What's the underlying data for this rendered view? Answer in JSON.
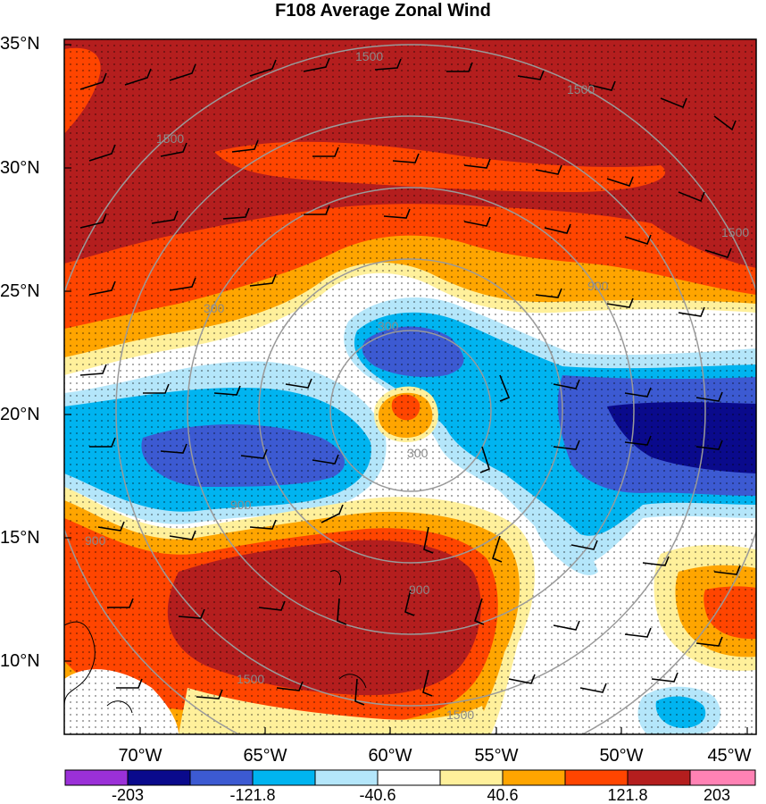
{
  "title": "F108 Average Zonal Wind",
  "lat_labels": [
    "35°N",
    "30°N",
    "25°N",
    "20°N",
    "15°N",
    "10°N"
  ],
  "lon_labels": [
    "70°W",
    "65°W",
    "60°W",
    "55°W",
    "50°W",
    "45°W"
  ],
  "contour_labels": [
    "1500",
    "1500",
    "1500",
    "1500",
    "900",
    "300",
    "300",
    "300",
    "900",
    "900",
    "1500",
    "1500",
    "900"
  ],
  "colorbar": {
    "labels": [
      "-203",
      "-121.8",
      "-40.6",
      "40.6",
      "121.8",
      "203"
    ],
    "colors": [
      "#9b30d8",
      "#0a0a8c",
      "#3c5ad2",
      "#00b4f0",
      "#b4e6fa",
      "#ffffff",
      "#fff09b",
      "#ffa500",
      "#ff4500",
      "#b41e1e",
      "#ff82b4"
    ]
  },
  "field_colors": {
    "dark_red": "#b41e1e",
    "red_orange": "#ff4500",
    "orange": "#ffa500",
    "pale_yellow": "#fff09b",
    "light_blue": "#b4e6fa",
    "cyan": "#00b4f0",
    "blue": "#3c5ad2",
    "navy": "#0a0a8c"
  }
}
